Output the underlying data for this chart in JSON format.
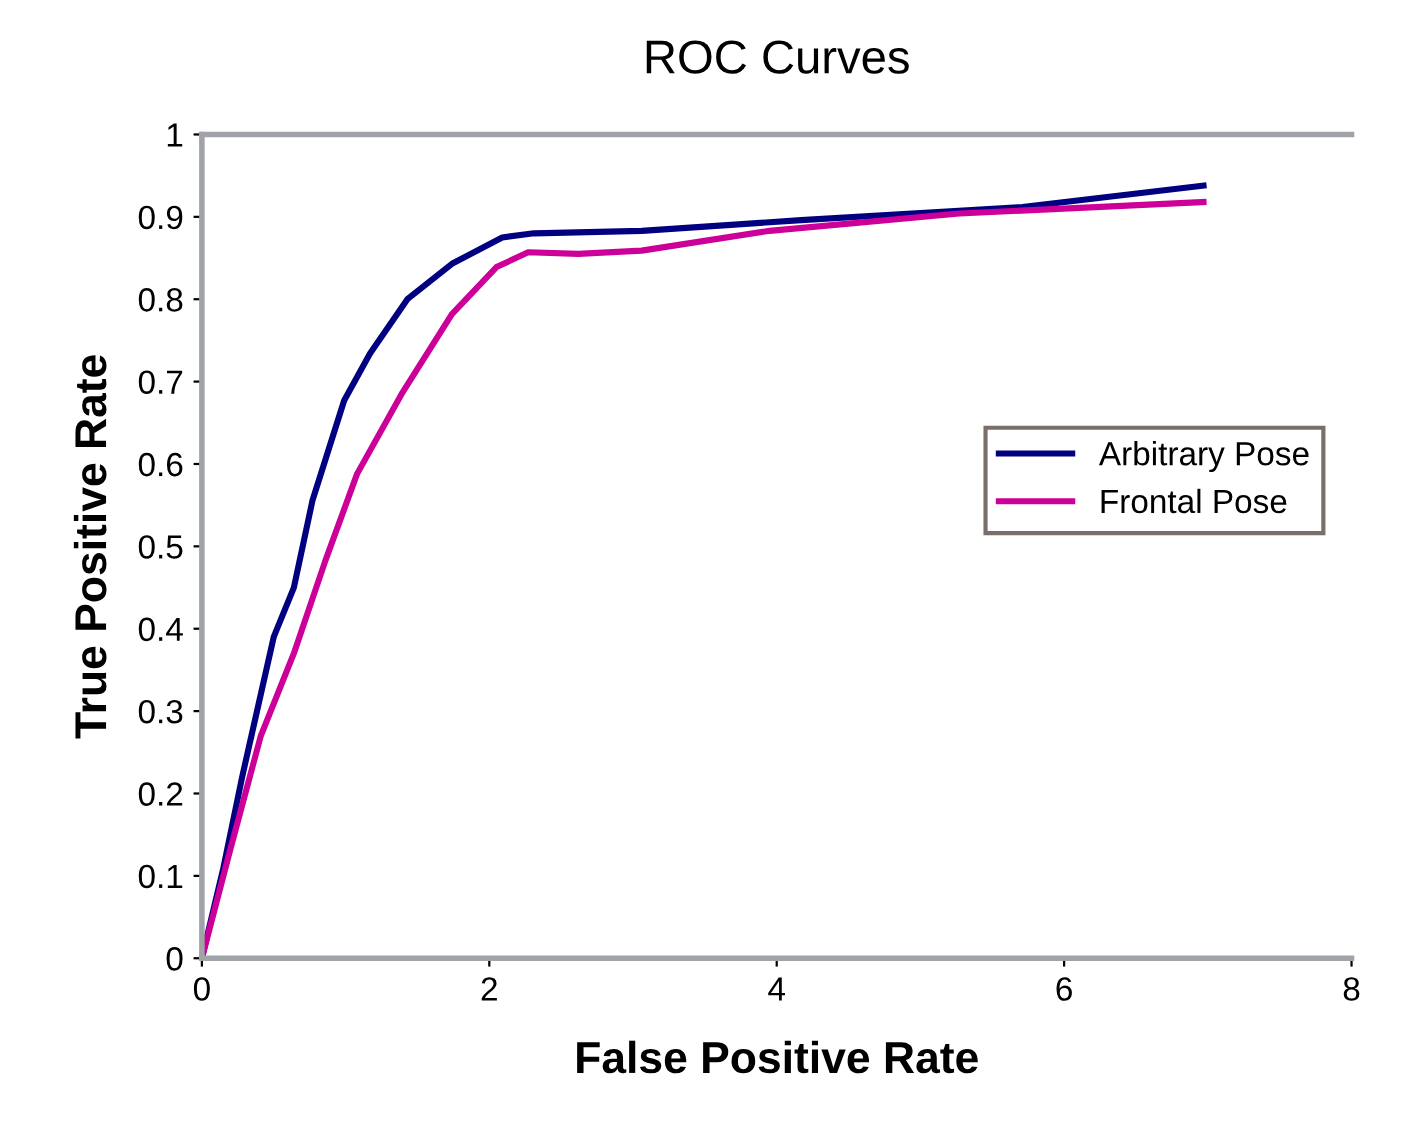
{
  "chart_data": {
    "type": "line",
    "title": "ROC Curves",
    "xlabel": "False Positive Rate",
    "ylabel": "True Positive Rate",
    "xlim": [
      0,
      8
    ],
    "xticks": [
      0,
      2,
      4,
      6,
      8
    ],
    "ylim": [
      0,
      1
    ],
    "yticks": [
      0,
      0.1,
      0.2,
      0.3,
      0.4,
      0.5,
      0.6,
      0.7,
      0.8,
      0.9,
      1
    ],
    "grid": false,
    "legend": "right",
    "marker": "none",
    "line_style": "solid",
    "series": [
      {
        "name": "Arbitrary Pose",
        "color": "#000080",
        "x": [
          0,
          0.15,
          0.28,
          0.39,
          0.5,
          0.64,
          0.77,
          0.99,
          1.17,
          1.43,
          1.74,
          2.09,
          2.31,
          3.06,
          4.17,
          5.71,
          6.97
        ],
        "values": [
          0,
          0.11,
          0.22,
          0.305,
          0.39,
          0.45,
          0.556,
          0.677,
          0.734,
          0.8,
          0.843,
          0.875,
          0.88,
          0.883,
          0.896,
          0.912,
          0.938
        ]
      },
      {
        "name": "Frontal Pose",
        "color": "#cc0099",
        "x": [
          0,
          0.19,
          0.41,
          0.64,
          0.86,
          1.08,
          1.39,
          1.74,
          2.05,
          2.27,
          2.62,
          3.06,
          3.95,
          5.27,
          6.97
        ],
        "values": [
          0,
          0.127,
          0.27,
          0.37,
          0.483,
          0.588,
          0.685,
          0.782,
          0.839,
          0.857,
          0.855,
          0.859,
          0.883,
          0.904,
          0.918
        ]
      }
    ]
  }
}
